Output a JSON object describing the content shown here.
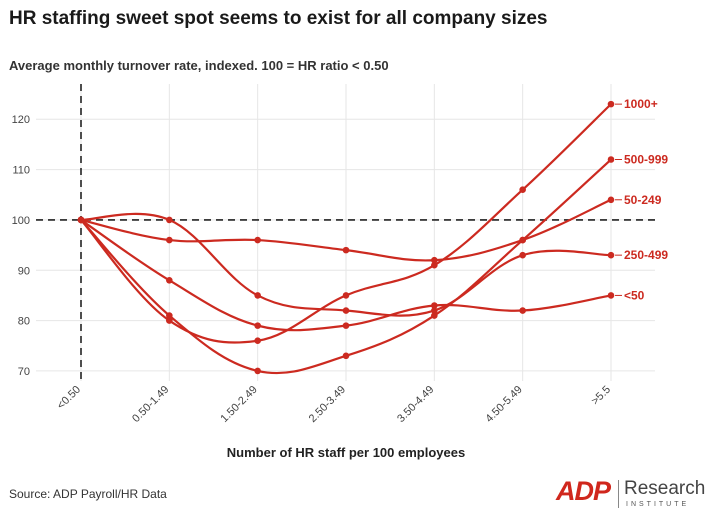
{
  "title": "HR staffing sweet spot seems to exist for all company sizes",
  "source": "Source: ADP Payroll/HR Data",
  "logo": {
    "brand": "ADP",
    "research": "Research",
    "institute": "INSTITUTE"
  },
  "colors": {
    "line": "#cc2a20",
    "label": "#cc2a20",
    "grid": "#e6e6e6",
    "reference": "#222222"
  },
  "chart_data": {
    "type": "line",
    "title": "HR staffing sweet spot seems to exist for all company sizes",
    "subtitle": "Average monthly turnover rate, indexed. 100 = HR ratio < 0.50",
    "xlabel": "Number of HR staff per 100 employees",
    "ylabel": "",
    "categories": [
      "<0.50",
      "0.50-1.49",
      "1.50-2.49",
      "2.50-3.49",
      "3.50-4.49",
      "4.50-5.49",
      ">5.5"
    ],
    "ylim": [
      68,
      127
    ],
    "yticks": [
      70,
      80,
      90,
      100,
      110,
      120
    ],
    "reference_lines": {
      "y": 100,
      "x_category": "<0.50"
    },
    "grid": true,
    "series": [
      {
        "name": "1000+",
        "values": [
          100,
          80,
          76,
          85,
          91,
          106,
          123
        ]
      },
      {
        "name": "500-999",
        "values": [
          100,
          81,
          70,
          73,
          81,
          96,
          112
        ]
      },
      {
        "name": "50-249",
        "values": [
          100,
          96,
          96,
          94,
          92,
          96,
          104
        ]
      },
      {
        "name": "250-499",
        "values": [
          100,
          100,
          85,
          82,
          82,
          93,
          93
        ]
      },
      {
        "name": "<50",
        "values": [
          100,
          88,
          79,
          79,
          83,
          82,
          85
        ]
      }
    ]
  }
}
